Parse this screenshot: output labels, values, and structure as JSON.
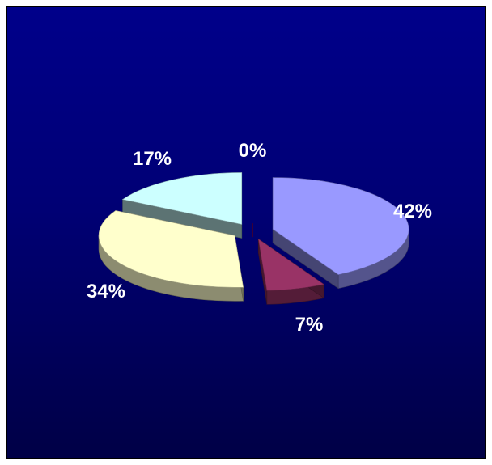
{
  "chart_data": {
    "type": "pie",
    "style": "3d-exploded",
    "title": "",
    "legend": "none",
    "slices": [
      {
        "label": "42%",
        "value": 42,
        "color": "#9999ff"
      },
      {
        "label": "7%",
        "value": 7,
        "color": "#993366"
      },
      {
        "label": "34%",
        "value": 34,
        "color": "#ffffcc"
      },
      {
        "label": "17%",
        "value": 17,
        "color": "#ccffff"
      },
      {
        "label": "0%",
        "value": 0,
        "color": "#660066"
      }
    ],
    "background": [
      "#00008a",
      "#000046"
    ]
  }
}
